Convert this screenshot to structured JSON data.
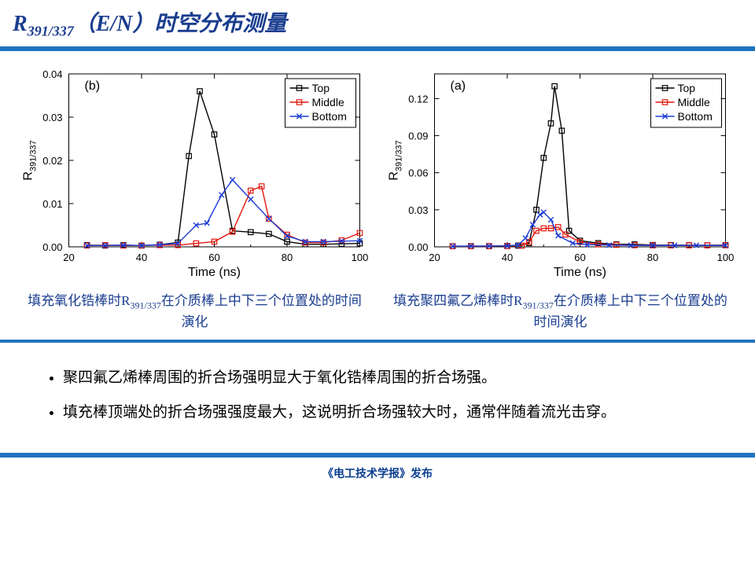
{
  "title_main": "R",
  "title_sub": "391/337",
  "title_rest": "（E/N）时空分布测量",
  "footer": "《电工技术学报》发布",
  "bullets": [
    "聚四氟乙烯棒周围的折合场强明显大于氧化锆棒周围的折合场强。",
    "填充棒顶端处的折合场强强度最大，这说明折合场强较大时，通常伴随着流光击穿。"
  ],
  "chart_b": {
    "panel": "(b)",
    "xlabel": "Time (ns)",
    "ylabel": "R",
    "ylabel_sub": "391/337",
    "xlim": [
      20,
      100
    ],
    "xtick_step": 20,
    "ylim": [
      0,
      0.04
    ],
    "ytick_step": 0.01,
    "legend": [
      "Top",
      "Middle",
      "Bottom"
    ],
    "series_colors": [
      "#000000",
      "#e3170d",
      "#1a3bd6"
    ],
    "markers": [
      "square",
      "square-open",
      "x"
    ],
    "line_width": 1.4,
    "series": {
      "Top": {
        "x": [
          25,
          30,
          35,
          40,
          45,
          50,
          53,
          56,
          60,
          65,
          70,
          75,
          80,
          85,
          90,
          95,
          100
        ],
        "y": [
          0.0004,
          0.0003,
          0.0004,
          0.0003,
          0.0005,
          0.001,
          0.021,
          0.036,
          0.026,
          0.0037,
          0.0034,
          0.003,
          0.0012,
          0.0006,
          0.0006,
          0.0007,
          0.0008
        ]
      },
      "Middle": {
        "x": [
          25,
          30,
          35,
          40,
          45,
          50,
          55,
          60,
          65,
          70,
          73,
          75,
          80,
          85,
          90,
          95,
          100
        ],
        "y": [
          0.0003,
          0.0004,
          0.0003,
          0.0003,
          0.0004,
          0.0004,
          0.0008,
          0.0012,
          0.0035,
          0.013,
          0.014,
          0.0065,
          0.0028,
          0.001,
          0.001,
          0.0015,
          0.0032
        ]
      },
      "Bottom": {
        "x": [
          25,
          30,
          35,
          40,
          45,
          50,
          55,
          58,
          62,
          65,
          70,
          75,
          80,
          85,
          90,
          95,
          100
        ],
        "y": [
          0.0003,
          0.0003,
          0.0004,
          0.0003,
          0.0005,
          0.0008,
          0.005,
          0.0055,
          0.012,
          0.0155,
          0.011,
          0.0065,
          0.0025,
          0.0012,
          0.0012,
          0.0013,
          0.0014
        ]
      }
    },
    "caption_pre": "填充氧化锆棒时R",
    "caption_sub": "391/337",
    "caption_post": "在介质棒上中下三个位置处的时间演化"
  },
  "chart_a": {
    "panel": "(a)",
    "xlabel": "Time (ns)",
    "ylabel": "R",
    "ylabel_sub": "391/337",
    "xlim": [
      20,
      100
    ],
    "xtick_step": 20,
    "ylim": [
      0,
      0.14
    ],
    "ytick_step": 0.03,
    "legend": [
      "Top",
      "Middle",
      "Bottom"
    ],
    "series_colors": [
      "#000000",
      "#e3170d",
      "#1a3bd6"
    ],
    "markers": [
      "square",
      "square-open",
      "x"
    ],
    "line_width": 1.4,
    "series": {
      "Top": {
        "x": [
          25,
          30,
          35,
          40,
          43,
          46,
          48,
          50,
          52,
          53,
          55,
          57,
          60,
          65,
          70,
          75,
          80,
          85,
          90,
          95,
          100
        ],
        "y": [
          0.0005,
          0.0006,
          0.0005,
          0.0007,
          0.001,
          0.003,
          0.03,
          0.072,
          0.1,
          0.13,
          0.094,
          0.013,
          0.005,
          0.003,
          0.002,
          0.002,
          0.0015,
          0.0014,
          0.0013,
          0.0012,
          0.0014
        ]
      },
      "Middle": {
        "x": [
          25,
          30,
          35,
          40,
          44,
          46,
          48,
          50,
          52,
          54,
          56,
          60,
          65,
          70,
          75,
          80,
          85,
          90,
          95,
          100
        ],
        "y": [
          0.0005,
          0.0005,
          0.0006,
          0.0007,
          0.001,
          0.004,
          0.013,
          0.015,
          0.015,
          0.016,
          0.01,
          0.004,
          0.002,
          0.0016,
          0.0013,
          0.0012,
          0.0012,
          0.0012,
          0.0012,
          0.0013
        ]
      },
      "Bottom": {
        "x": [
          25,
          30,
          35,
          40,
          43,
          45,
          47,
          49,
          50,
          52,
          54,
          58,
          62,
          68,
          74,
          80,
          86,
          92,
          100
        ],
        "y": [
          0.0005,
          0.0006,
          0.0007,
          0.0008,
          0.0015,
          0.007,
          0.018,
          0.026,
          0.028,
          0.022,
          0.009,
          0.003,
          0.0018,
          0.0014,
          0.0012,
          0.0012,
          0.0012,
          0.0012,
          0.0012
        ]
      }
    },
    "caption_pre": "填充聚四氟乙烯棒时R",
    "caption_sub": "391/337",
    "caption_post": "在介质棒上中下三个位置处的时间演化"
  }
}
